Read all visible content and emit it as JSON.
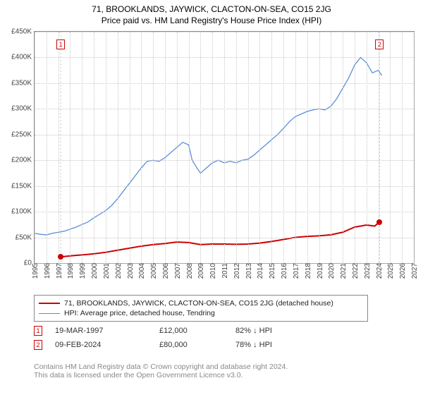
{
  "title_line1": "71, BROOKLANDS, JAYWICK, CLACTON-ON-SEA, CO15 2JG",
  "title_line2": "Price paid vs. HM Land Registry's House Price Index (HPI)",
  "chart": {
    "type": "line",
    "background_color": "#ffffff",
    "grid_color": "#c8c8c8",
    "axis_color": "#888888",
    "text_color": "#444444",
    "y": {
      "min": 0,
      "max": 450000,
      "step": 50000,
      "labels": [
        "£0",
        "£50K",
        "£100K",
        "£150K",
        "£200K",
        "£250K",
        "£300K",
        "£350K",
        "£400K",
        "£450K"
      ]
    },
    "x": {
      "min": 1995,
      "max": 2027,
      "step": 1,
      "labels": [
        "1995",
        "1996",
        "1997",
        "1998",
        "1999",
        "2000",
        "2001",
        "2002",
        "2003",
        "2004",
        "2005",
        "2006",
        "2007",
        "2008",
        "2009",
        "2010",
        "2011",
        "2012",
        "2013",
        "2014",
        "2015",
        "2016",
        "2017",
        "2018",
        "2019",
        "2020",
        "2021",
        "2022",
        "2023",
        "2024",
        "2025",
        "2026",
        "2027"
      ]
    },
    "series": [
      {
        "name": "property",
        "color": "#cc0000",
        "width": 2,
        "label": "71, BROOKLANDS, JAYWICK, CLACTON-ON-SEA, CO15 2JG (detached house)",
        "points": [
          [
            1997.21,
            12000
          ],
          [
            1998,
            14000
          ],
          [
            1999,
            16000
          ],
          [
            2000,
            18000
          ],
          [
            2001,
            21000
          ],
          [
            2002,
            25000
          ],
          [
            2003,
            29000
          ],
          [
            2004,
            33000
          ],
          [
            2005,
            36000
          ],
          [
            2006,
            38000
          ],
          [
            2007,
            41000
          ],
          [
            2008,
            40000
          ],
          [
            2009,
            36000
          ],
          [
            2010,
            37000
          ],
          [
            2011,
            37000
          ],
          [
            2012,
            36500
          ],
          [
            2013,
            37000
          ],
          [
            2014,
            39000
          ],
          [
            2015,
            42000
          ],
          [
            2016,
            46000
          ],
          [
            2017,
            50000
          ],
          [
            2018,
            52000
          ],
          [
            2019,
            53000
          ],
          [
            2020,
            55000
          ],
          [
            2021,
            60000
          ],
          [
            2022,
            70000
          ],
          [
            2023,
            74000
          ],
          [
            2023.7,
            72000
          ],
          [
            2024.11,
            80000
          ]
        ]
      },
      {
        "name": "hpi",
        "color": "#5b8fd6",
        "width": 1.3,
        "label": "HPI: Average price, detached house, Tendring",
        "points": [
          [
            1995,
            58000
          ],
          [
            1995.5,
            56000
          ],
          [
            1996,
            55000
          ],
          [
            1996.5,
            58000
          ],
          [
            1997,
            60000
          ],
          [
            1997.5,
            62000
          ],
          [
            1998,
            66000
          ],
          [
            1998.5,
            70000
          ],
          [
            1999,
            75000
          ],
          [
            1999.5,
            80000
          ],
          [
            2000,
            88000
          ],
          [
            2000.5,
            95000
          ],
          [
            2001,
            102000
          ],
          [
            2001.5,
            112000
          ],
          [
            2002,
            125000
          ],
          [
            2002.5,
            140000
          ],
          [
            2003,
            155000
          ],
          [
            2003.5,
            170000
          ],
          [
            2004,
            185000
          ],
          [
            2004.5,
            198000
          ],
          [
            2005,
            200000
          ],
          [
            2005.5,
            198000
          ],
          [
            2006,
            205000
          ],
          [
            2006.5,
            215000
          ],
          [
            2007,
            225000
          ],
          [
            2007.5,
            235000
          ],
          [
            2008,
            230000
          ],
          [
            2008.3,
            200000
          ],
          [
            2008.7,
            185000
          ],
          [
            2009,
            175000
          ],
          [
            2009.5,
            185000
          ],
          [
            2010,
            195000
          ],
          [
            2010.5,
            200000
          ],
          [
            2011,
            195000
          ],
          [
            2011.5,
            198000
          ],
          [
            2012,
            195000
          ],
          [
            2012.5,
            200000
          ],
          [
            2013,
            202000
          ],
          [
            2013.5,
            210000
          ],
          [
            2014,
            220000
          ],
          [
            2014.5,
            230000
          ],
          [
            2015,
            240000
          ],
          [
            2015.5,
            250000
          ],
          [
            2016,
            262000
          ],
          [
            2016.5,
            275000
          ],
          [
            2017,
            285000
          ],
          [
            2017.5,
            290000
          ],
          [
            2018,
            295000
          ],
          [
            2018.5,
            298000
          ],
          [
            2019,
            300000
          ],
          [
            2019.5,
            298000
          ],
          [
            2020,
            305000
          ],
          [
            2020.5,
            320000
          ],
          [
            2021,
            340000
          ],
          [
            2021.5,
            360000
          ],
          [
            2022,
            385000
          ],
          [
            2022.5,
            400000
          ],
          [
            2023,
            390000
          ],
          [
            2023.5,
            370000
          ],
          [
            2024,
            375000
          ],
          [
            2024.3,
            365000
          ]
        ]
      }
    ],
    "sale_markers": [
      {
        "n": "1",
        "x": 1997.21,
        "y": 12000,
        "dot_color": "#cc0000"
      },
      {
        "n": "2",
        "x": 2024.11,
        "y": 80000,
        "dot_color": "#cc0000"
      }
    ],
    "marker_vertical_color": "#c8c8c8"
  },
  "legend": {
    "items": [
      {
        "color": "#cc0000",
        "label_path": "chart.series.0.label"
      },
      {
        "color": "#5b8fd6",
        "label_path": "chart.series.1.label"
      }
    ]
  },
  "sales": [
    {
      "n": "1",
      "date": "19-MAR-1997",
      "price": "£12,000",
      "pct": "82% ↓ HPI"
    },
    {
      "n": "2",
      "date": "09-FEB-2024",
      "price": "£80,000",
      "pct": "78% ↓ HPI"
    }
  ],
  "footer_line1": "Contains HM Land Registry data © Crown copyright and database right 2024.",
  "footer_line2": "This data is licensed under the Open Government Licence v3.0."
}
